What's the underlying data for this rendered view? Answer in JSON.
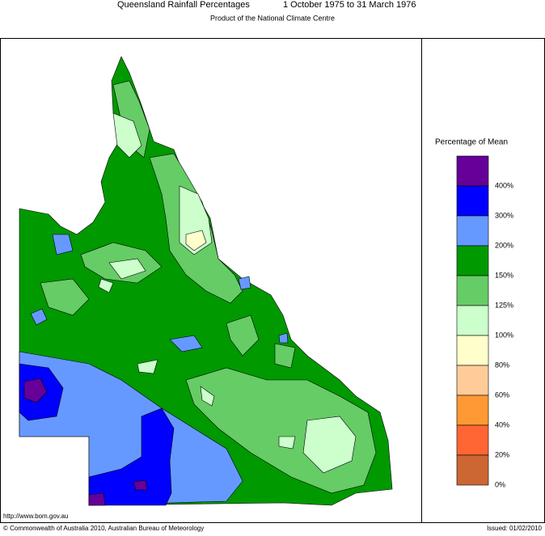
{
  "header": {
    "title": "Queensland Rainfall Percentages",
    "period": "1 October 1975 to 31 March 1976",
    "subtitle": "Product of the National Climate Centre"
  },
  "legend": {
    "title": "Percentage of Mean",
    "colors": [
      "#660099",
      "#0000ff",
      "#6699ff",
      "#009900",
      "#66cc66",
      "#ccffcc",
      "#ffffcc",
      "#ffcc99",
      "#ff9933",
      "#ff6633",
      "#cc6633"
    ],
    "labels": [
      "400%",
      "300%",
      "200%",
      "150%",
      "125%",
      "100%",
      "80%",
      "60%",
      "40%",
      "20%",
      "0%"
    ]
  },
  "footer": {
    "url": "http://www.bom.gov.au",
    "copyright": "© Commonwealth of Australia 2010, Australian Bureau of Meteorology",
    "issued": "Issued: 01/02/2010"
  }
}
